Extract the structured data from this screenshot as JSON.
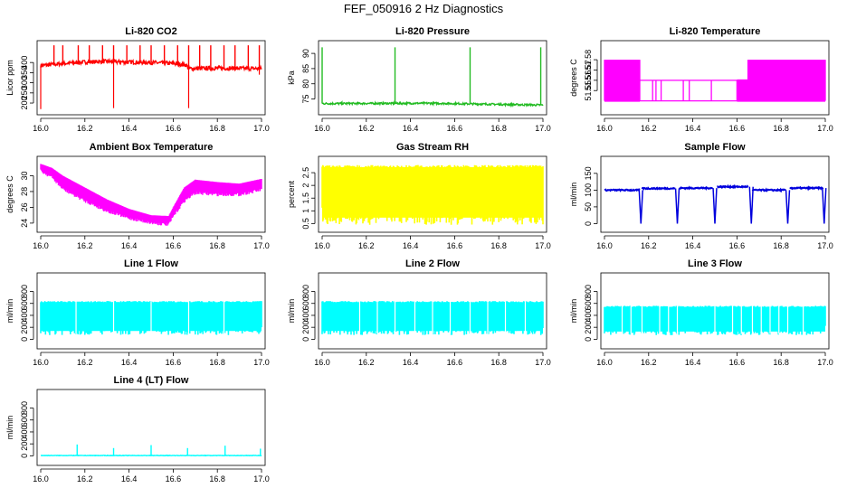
{
  "title": "FEF_050916  2 Hz Diagnostics",
  "chart_data": [
    {
      "type": "line",
      "title": "Li-820 CO2",
      "ylabel": "Licor ppm",
      "xlim": [
        16.0,
        17.0
      ],
      "ylim": [
        160,
        490
      ],
      "x_ticks": [
        "16.0",
        "16.2",
        "16.4",
        "16.6",
        "16.8",
        "17.0"
      ],
      "y_ticks": [
        200,
        250,
        300,
        350,
        400
      ],
      "color": "#ff0000",
      "style": "noisy",
      "baseline": [
        [
          16.0,
          385
        ],
        [
          16.1,
          395
        ],
        [
          16.2,
          402
        ],
        [
          16.3,
          405
        ],
        [
          16.4,
          402
        ],
        [
          16.5,
          400
        ],
        [
          16.6,
          395
        ],
        [
          16.66,
          388
        ],
        [
          16.67,
          370
        ],
        [
          16.8,
          372
        ],
        [
          17.0,
          370
        ]
      ],
      "noise": 10,
      "spikes_up": [
        16.06,
        16.1,
        16.17,
        16.22,
        16.28,
        16.33,
        16.39,
        16.45,
        16.5,
        16.56,
        16.62,
        16.67,
        16.72,
        16.77,
        16.83,
        16.88,
        16.94,
        16.99
      ],
      "spike_up_top": 485,
      "spikes_down": [
        [
          16.0,
          170
        ],
        [
          16.33,
          175
        ],
        [
          16.67,
          175
        ],
        [
          16.99,
          340
        ]
      ]
    },
    {
      "type": "line",
      "title": "Li-820 Pressure",
      "ylabel": "kPa",
      "xlim": [
        16.0,
        17.0
      ],
      "ylim": [
        71,
        93
      ],
      "x_ticks": [
        "16.0",
        "16.2",
        "16.4",
        "16.6",
        "16.8",
        "17.0"
      ],
      "y_ticks": [
        75,
        80,
        85,
        90
      ],
      "color": "#22bb22",
      "style": "noisy",
      "baseline": [
        [
          16.0,
          73.5
        ],
        [
          16.5,
          73.6
        ],
        [
          17.0,
          73.0
        ]
      ],
      "noise": 0.3,
      "spikes_up": [
        16.0,
        16.33,
        16.67,
        16.99
      ],
      "spike_up_top": 92,
      "spikes_down": []
    },
    {
      "type": "line",
      "title": "Li-820 Temperature",
      "ylabel": "degrees C",
      "xlim": [
        16.0,
        17.0
      ],
      "ylim": [
        51.53,
        51.595
      ],
      "x_ticks": [
        "16.0",
        "16.2",
        "16.4",
        "16.6",
        "16.8",
        "17.0"
      ],
      "y_ticks": [
        51.55,
        51.56,
        51.57,
        51.58
      ],
      "color": "#ff00ff",
      "style": "quantized",
      "levels": [
        51.54,
        51.56,
        51.58
      ]
    },
    {
      "type": "line",
      "title": "Ambient Box Temperature",
      "ylabel": "degrees C",
      "xlim": [
        16.0,
        17.0
      ],
      "ylim": [
        23.3,
        32.0
      ],
      "x_ticks": [
        "16.0",
        "16.2",
        "16.4",
        "16.6",
        "16.8",
        "17.0"
      ],
      "y_ticks": [
        24,
        26,
        28,
        30
      ],
      "color": "#ff00ff",
      "style": "band",
      "upper": [
        [
          16.0,
          31.5
        ],
        [
          16.05,
          31.0
        ],
        [
          16.1,
          30.0
        ],
        [
          16.2,
          28.5
        ],
        [
          16.3,
          27.0
        ],
        [
          16.4,
          25.8
        ],
        [
          16.5,
          25.0
        ],
        [
          16.58,
          24.9
        ],
        [
          16.6,
          26.0
        ],
        [
          16.65,
          28.5
        ],
        [
          16.7,
          29.5
        ],
        [
          16.8,
          29.2
        ],
        [
          16.9,
          29.0
        ],
        [
          17.0,
          29.6
        ]
      ],
      "lower": [
        [
          16.0,
          30.8
        ],
        [
          16.05,
          30.0
        ],
        [
          16.1,
          28.5
        ],
        [
          16.2,
          27.0
        ],
        [
          16.3,
          25.7
        ],
        [
          16.4,
          24.8
        ],
        [
          16.5,
          24.2
        ],
        [
          16.58,
          24.0
        ],
        [
          16.6,
          25.0
        ],
        [
          16.65,
          27.0
        ],
        [
          16.7,
          28.0
        ],
        [
          16.8,
          27.8
        ],
        [
          16.9,
          27.8
        ],
        [
          17.0,
          28.4
        ]
      ]
    },
    {
      "type": "line",
      "title": "Gas Stream RH",
      "ylabel": "percent",
      "xlim": [
        16.0,
        17.0
      ],
      "ylim": [
        0.3,
        3.0
      ],
      "x_ticks": [
        "16.0",
        "16.2",
        "16.4",
        "16.6",
        "16.8",
        "17.0"
      ],
      "y_ticks": [
        0.5,
        1.0,
        1.5,
        2.0,
        2.5
      ],
      "color": "#ffff00",
      "style": "dense",
      "low": 0.45,
      "high": 2.8
    },
    {
      "type": "line",
      "title": "Sample Flow",
      "ylabel": "ml/min",
      "xlim": [
        16.0,
        17.0
      ],
      "ylim": [
        -15,
        190
      ],
      "x_ticks": [
        "16.0",
        "16.2",
        "16.4",
        "16.6",
        "16.8",
        "17.0"
      ],
      "y_ticks": [
        0,
        50,
        100,
        150
      ],
      "color": "#0000dd",
      "style": "steps",
      "segments": [
        [
          16.0,
          16.16,
          100
        ],
        [
          16.17,
          16.32,
          105
        ],
        [
          16.34,
          16.49,
          106
        ],
        [
          16.51,
          16.65,
          110
        ],
        [
          16.67,
          16.82,
          100
        ],
        [
          16.84,
          16.99,
          106
        ]
      ],
      "dips": [
        16.165,
        16.33,
        16.5,
        16.665,
        16.83,
        16.995
      ],
      "dip_low": 0
    },
    {
      "type": "line",
      "title": "Line 1 Flow",
      "ylabel": "ml/min",
      "xlim": [
        16.0,
        17.0
      ],
      "ylim": [
        -100,
        1050
      ],
      "x_ticks": [
        "16.0",
        "16.2",
        "16.4",
        "16.6",
        "16.8",
        "17.0"
      ],
      "y_ticks": [
        0,
        200,
        400,
        600,
        800
      ],
      "color": "#00ffff",
      "style": "dense",
      "low": 70,
      "high": 640,
      "gaps": [
        16.16,
        16.33,
        16.5,
        16.67,
        16.83
      ]
    },
    {
      "type": "line",
      "title": "Line 2 Flow",
      "ylabel": "ml/min",
      "xlim": [
        16.0,
        17.0
      ],
      "ylim": [
        -100,
        1050
      ],
      "x_ticks": [
        "16.0",
        "16.2",
        "16.4",
        "16.6",
        "16.8",
        "17.0"
      ],
      "y_ticks": [
        0,
        200,
        400,
        600,
        800
      ],
      "color": "#00ffff",
      "style": "dense",
      "low": 70,
      "high": 640,
      "gaps": [
        16.17,
        16.25,
        16.33,
        16.42,
        16.5,
        16.58,
        16.67,
        16.75,
        16.83,
        16.92
      ]
    },
    {
      "type": "line",
      "title": "Line 3 Flow",
      "ylabel": "ml/min",
      "xlim": [
        16.0,
        17.0
      ],
      "ylim": [
        -100,
        1050
      ],
      "x_ticks": [
        "16.0",
        "16.2",
        "16.4",
        "16.6",
        "16.8",
        "17.0"
      ],
      "y_ticks": [
        0,
        200,
        400,
        600,
        800
      ],
      "color": "#00ffff",
      "style": "dense",
      "low": 70,
      "high": 560,
      "gaps": [
        16.08,
        16.12,
        16.17,
        16.25,
        16.29,
        16.33,
        16.5,
        16.58,
        16.62,
        16.67,
        16.71,
        16.75,
        16.79,
        16.83,
        16.9
      ]
    },
    {
      "type": "line",
      "title": "Line 4 (LT) Flow",
      "ylabel": "ml/min",
      "xlim": [
        16.0,
        17.0
      ],
      "ylim": [
        -100,
        1050
      ],
      "x_ticks": [
        "16.0",
        "16.2",
        "16.4",
        "16.6",
        "16.8",
        "17.0"
      ],
      "y_ticks": [
        0,
        200,
        400,
        600,
        800
      ],
      "color": "#00ffff",
      "style": "noisy",
      "baseline": [
        [
          16.0,
          5
        ],
        [
          17.0,
          5
        ]
      ],
      "noise": 4,
      "spikes_up_list": [
        [
          16.165,
          190
        ],
        [
          16.33,
          130
        ],
        [
          16.5,
          180
        ],
        [
          16.665,
          130
        ],
        [
          16.835,
          170
        ],
        [
          16.995,
          120
        ]
      ],
      "spikes_down": []
    }
  ]
}
